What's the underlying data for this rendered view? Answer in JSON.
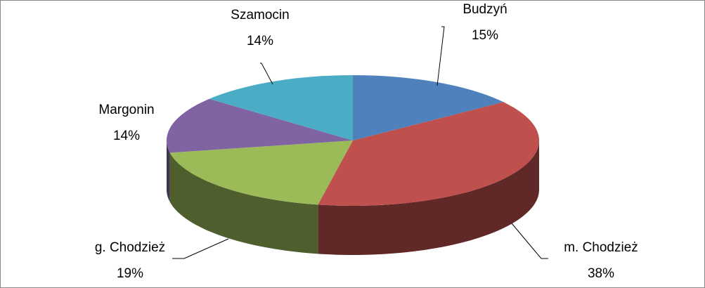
{
  "chart_data": {
    "type": "pie3d",
    "categories": [
      "Budzyń",
      "m. Chodzież",
      "g. Chodzież",
      "Margonin",
      "Szamocin"
    ],
    "values": [
      15,
      38,
      19,
      14,
      14
    ],
    "value_labels": [
      "15%",
      "38%",
      "19%",
      "14%",
      "14%"
    ],
    "colors": [
      "#4f81bd",
      "#c0504d",
      "#9bbb59",
      "#8064a2",
      "#4bacc6"
    ]
  }
}
